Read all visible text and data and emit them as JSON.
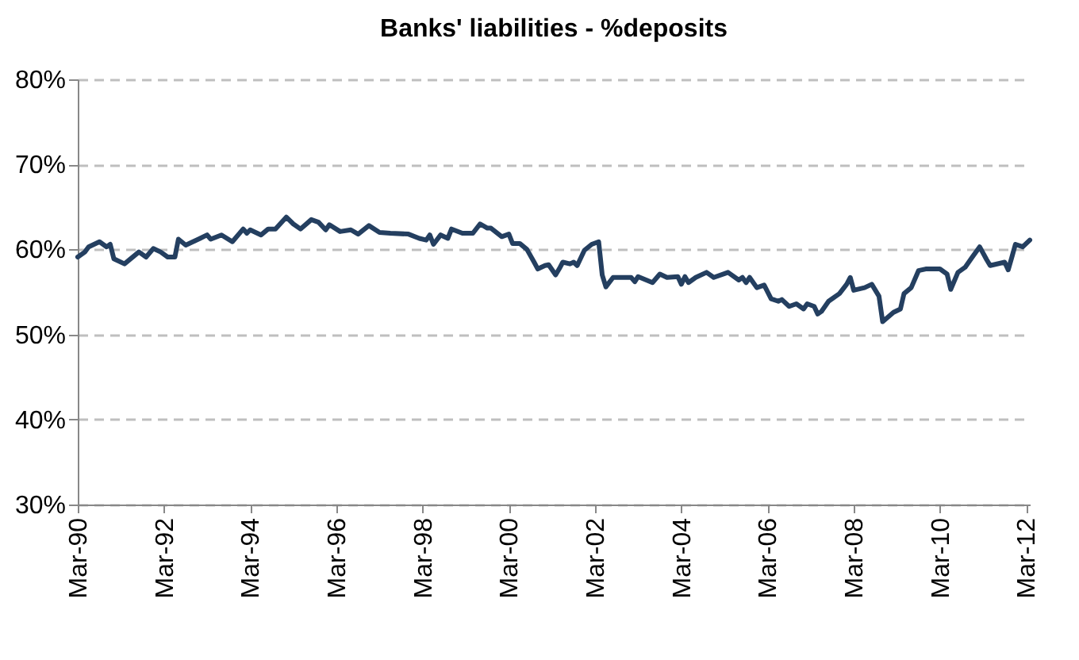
{
  "chart_data": {
    "type": "line",
    "title": "Banks' liabilities - %deposits",
    "x": [
      "1990-03",
      "1990-05",
      "1990-06",
      "1990-09",
      "1990-11",
      "1990-12",
      "1991-01",
      "1991-04",
      "1991-08",
      "1991-10",
      "1991-12",
      "1992-02",
      "1992-04",
      "1992-06",
      "1992-07",
      "1992-09",
      "1993-01",
      "1993-03",
      "1993-04",
      "1993-07",
      "1993-10",
      "1994-01",
      "1994-02",
      "1994-03",
      "1994-06",
      "1994-08",
      "1994-10",
      "1995-01",
      "1995-03",
      "1995-05",
      "1995-08",
      "1995-10",
      "1995-12",
      "1996-01",
      "1996-04",
      "1996-07",
      "1996-09",
      "1996-12",
      "1997-03",
      "1997-06",
      "1997-11",
      "1998-02",
      "1998-04",
      "1998-05",
      "1998-06",
      "1998-08",
      "1998-10",
      "1998-11",
      "1999-02",
      "1999-05",
      "1999-07",
      "1999-09",
      "1999-10",
      "2000-01",
      "2000-03",
      "2000-04",
      "2000-06",
      "2000-08",
      "2000-10",
      "2000-11",
      "2001-01",
      "2001-02",
      "2001-04",
      "2001-05",
      "2001-06",
      "2001-08",
      "2001-09",
      "2001-10",
      "2001-12",
      "2002-02",
      "2002-04",
      "2002-05",
      "2002-06",
      "2002-08",
      "2003-01",
      "2003-02",
      "2003-03",
      "2003-07",
      "2003-09",
      "2003-11",
      "2004-02",
      "2004-03",
      "2004-04",
      "2004-05",
      "2004-07",
      "2004-10",
      "2004-12",
      "2005-04",
      "2005-07",
      "2005-08",
      "2005-09",
      "2005-10",
      "2005-12",
      "2006-02",
      "2006-04",
      "2006-06",
      "2006-07",
      "2006-09",
      "2006-11",
      "2007-01",
      "2007-02",
      "2007-04",
      "2007-05",
      "2007-06",
      "2007-08",
      "2007-09",
      "2007-11",
      "2008-01",
      "2008-02",
      "2008-03",
      "2008-06",
      "2008-08",
      "2008-10",
      "2008-11",
      "2009-02",
      "2009-04",
      "2009-05",
      "2009-07",
      "2009-09",
      "2009-11",
      "2010-03",
      "2010-05",
      "2010-06",
      "2010-08",
      "2010-10",
      "2010-12",
      "2011-02",
      "2011-04",
      "2011-05",
      "2011-09",
      "2011-10",
      "2011-11",
      "2011-12",
      "2012-02",
      "2012-04"
    ],
    "series": [
      {
        "color": "#243f60",
        "values": [
          59.1,
          59.7,
          60.3,
          60.9,
          60.3,
          60.6,
          58.9,
          58.3,
          59.7,
          59.1,
          60.1,
          59.7,
          59.1,
          59.1,
          61.2,
          60.5,
          61.3,
          61.7,
          61.2,
          61.7,
          60.9,
          62.4,
          61.9,
          62.3,
          61.7,
          62.4,
          62.4,
          63.8,
          63.0,
          62.4,
          63.5,
          63.2,
          62.3,
          62.9,
          62.1,
          62.3,
          61.8,
          62.8,
          62.0,
          61.9,
          61.8,
          61.3,
          61.1,
          61.7,
          60.6,
          61.7,
          61.3,
          62.4,
          61.9,
          61.9,
          63.0,
          62.5,
          62.5,
          61.5,
          61.8,
          60.7,
          60.7,
          60.0,
          58.5,
          57.7,
          58.1,
          58.2,
          57.0,
          57.7,
          58.5,
          58.3,
          58.5,
          58.1,
          59.9,
          60.6,
          60.9,
          57.0,
          55.6,
          56.7,
          56.7,
          56.2,
          56.8,
          56.1,
          57.1,
          56.7,
          56.8,
          55.9,
          56.8,
          56.1,
          56.7,
          57.3,
          56.7,
          57.3,
          56.4,
          56.7,
          56.1,
          56.7,
          55.5,
          55.8,
          54.2,
          53.9,
          54.1,
          53.3,
          53.6,
          53.0,
          53.6,
          53.3,
          52.4,
          52.7,
          53.9,
          54.2,
          54.8,
          55.9,
          56.7,
          55.2,
          55.5,
          55.9,
          54.5,
          51.5,
          52.6,
          53.0,
          54.8,
          55.5,
          57.5,
          57.7,
          57.7,
          57.1,
          55.3,
          57.3,
          57.9,
          59.1,
          60.3,
          58.8,
          58.1,
          58.5,
          57.6,
          59.1,
          60.6,
          60.3,
          61.1
        ]
      }
    ],
    "xlim": [
      "1990-03",
      "2012-04"
    ],
    "xticks": [
      {
        "value": "1990-03",
        "label": "Mar-90"
      },
      {
        "value": "1992-03",
        "label": "Mar-92"
      },
      {
        "value": "1994-03",
        "label": "Mar-94"
      },
      {
        "value": "1996-03",
        "label": "Mar-96"
      },
      {
        "value": "1998-03",
        "label": "Mar-98"
      },
      {
        "value": "2000-03",
        "label": "Mar-00"
      },
      {
        "value": "2002-03",
        "label": "Mar-02"
      },
      {
        "value": "2004-03",
        "label": "Mar-04"
      },
      {
        "value": "2006-03",
        "label": "Mar-06"
      },
      {
        "value": "2008-03",
        "label": "Mar-08"
      },
      {
        "value": "2010-03",
        "label": "Mar-10"
      },
      {
        "value": "2012-03",
        "label": "Mar-12"
      }
    ],
    "ylim": [
      30,
      80
    ],
    "yticks": [
      {
        "value": 30,
        "label": "30%"
      },
      {
        "value": 40,
        "label": "40%"
      },
      {
        "value": 50,
        "label": "50%"
      },
      {
        "value": 60,
        "label": "60%"
      },
      {
        "value": 70,
        "label": "70%"
      },
      {
        "value": 80,
        "label": "80%"
      }
    ],
    "grid": "y"
  }
}
